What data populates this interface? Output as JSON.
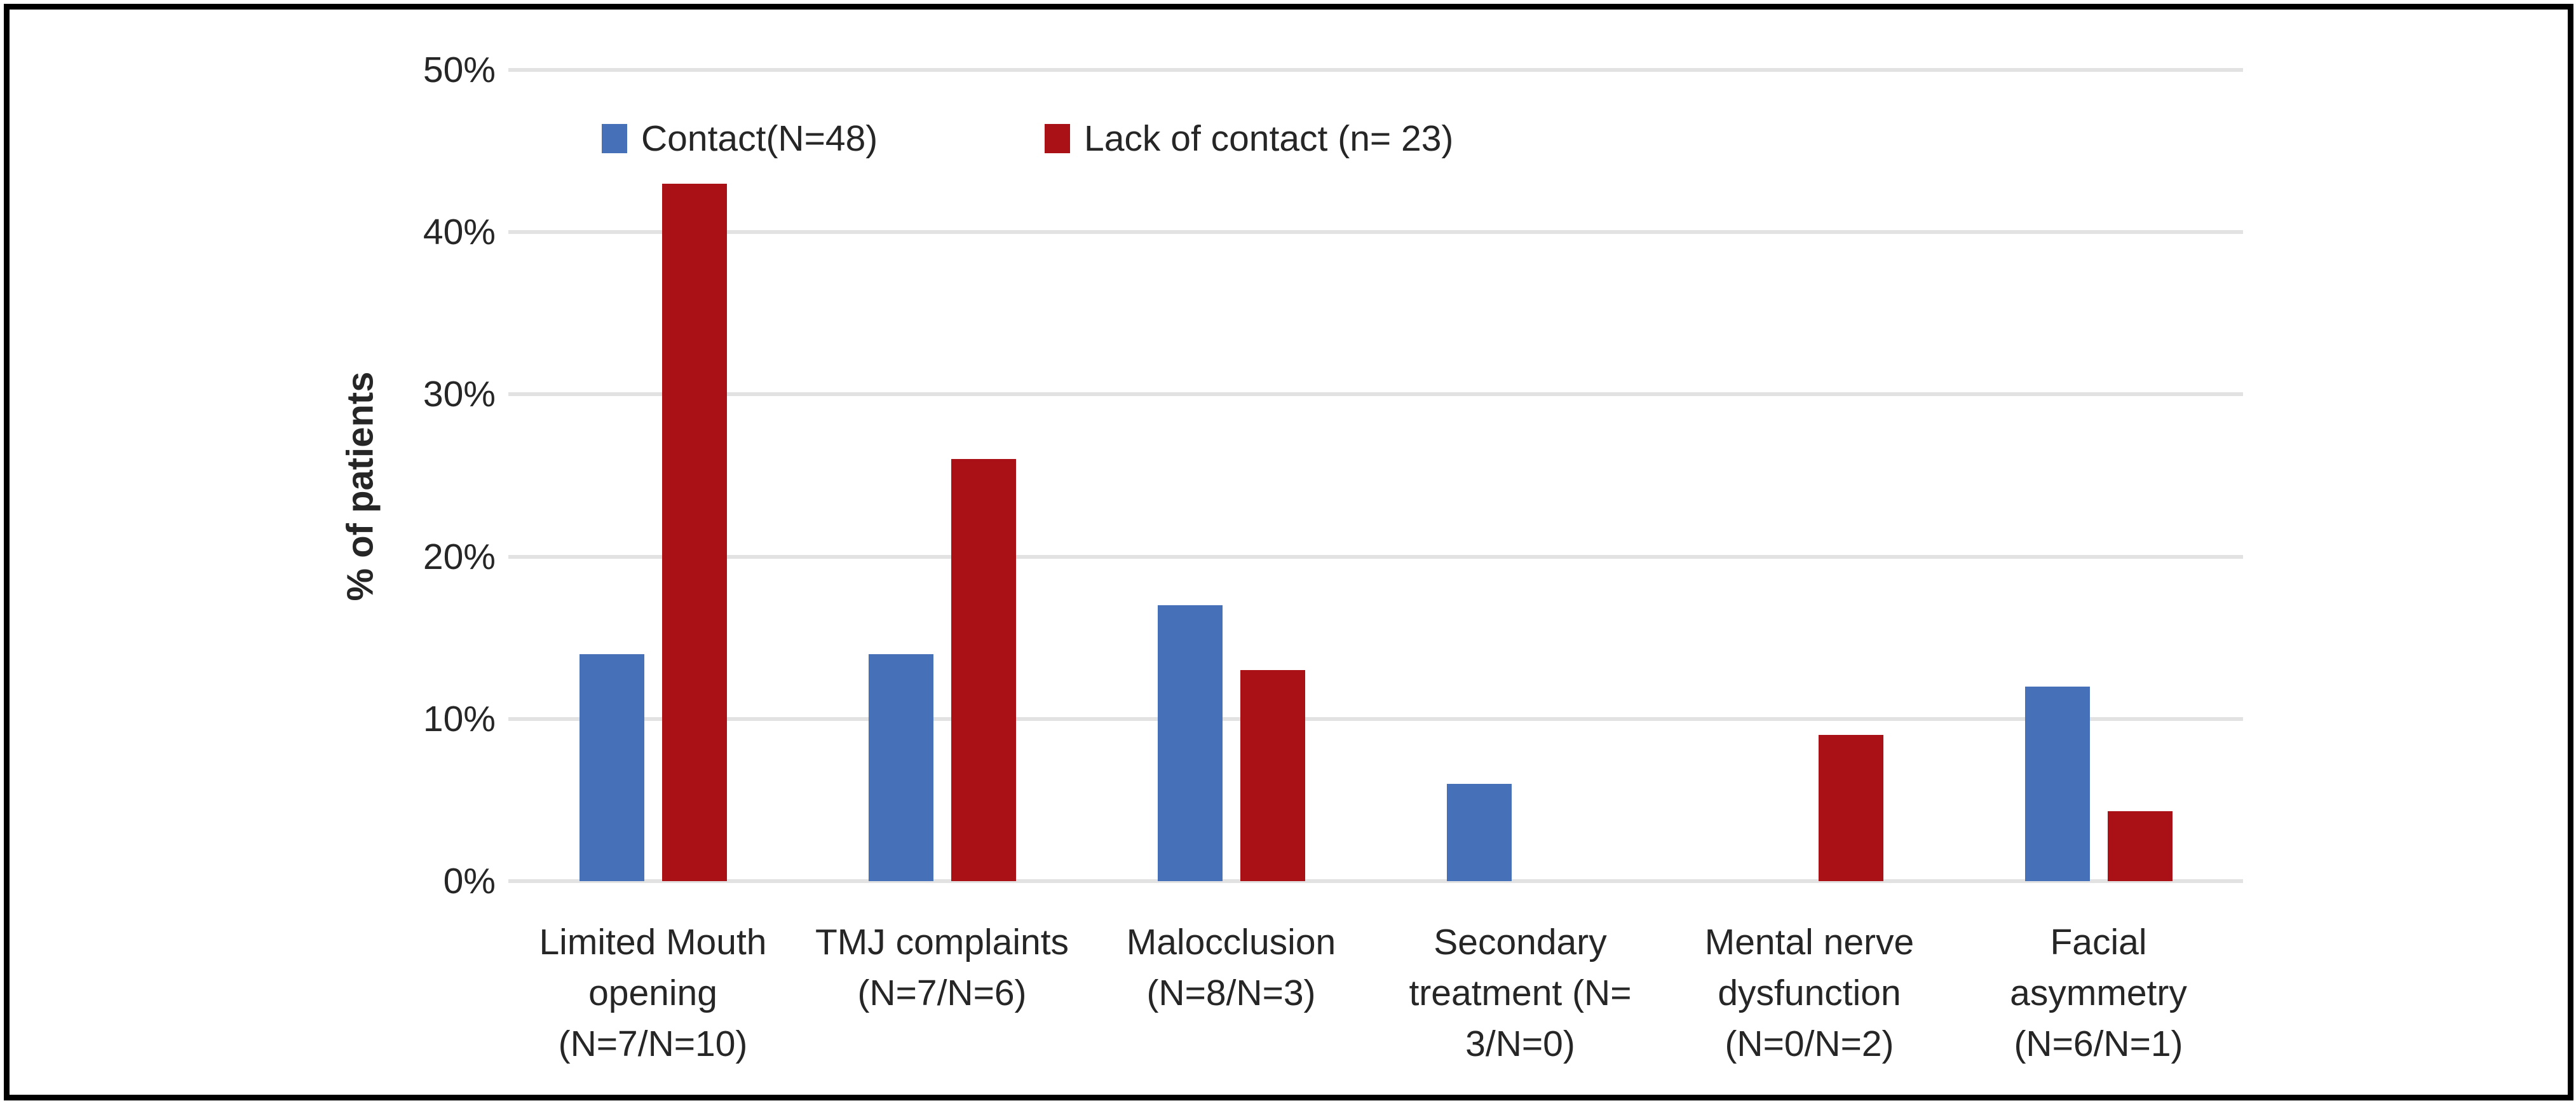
{
  "chart_data": {
    "type": "bar",
    "title": "",
    "xlabel": "",
    "ylabel": "% of patients",
    "ylim": [
      0,
      50
    ],
    "yticks": [
      0,
      10,
      20,
      30,
      40,
      50
    ],
    "ytick_labels": [
      "0%",
      "10%",
      "20%",
      "30%",
      "40%",
      "50%"
    ],
    "grid": true,
    "legend_position": "top-left-inside",
    "categories": [
      {
        "label": "Limited Mouth opening (N=7/N=10)",
        "lines": [
          "Limited Mouth",
          "opening",
          "(N=7/N=10)"
        ]
      },
      {
        "label": "TMJ complaints (N=7/N=6)",
        "lines": [
          "TMJ complaints",
          "(N=7/N=6)"
        ]
      },
      {
        "label": "Malocclusion (N=8/N=3)",
        "lines": [
          "Malocclusion",
          "(N=8/N=3)"
        ]
      },
      {
        "label": "Secondary treatment (N= 3/N=0)",
        "lines": [
          "Secondary",
          "treatment (N=",
          "3/N=0)"
        ]
      },
      {
        "label": "Mental nerve dysfunction (N=0/N=2)",
        "lines": [
          "Mental nerve",
          "dysfunction",
          "(N=0/N=2)"
        ]
      },
      {
        "label": "Facial asymmetry (N=6/N=1)",
        "lines": [
          "Facial",
          "asymmetry",
          "(N=6/N=1)"
        ]
      }
    ],
    "series": [
      {
        "name": "Contact(N=48)",
        "color": "#4670B8",
        "values": [
          14,
          14,
          17,
          6,
          0,
          12
        ]
      },
      {
        "name": "Lack of contact (n= 23)",
        "color": "#A91117",
        "values": [
          43,
          26,
          13,
          0,
          9,
          4.3
        ]
      }
    ]
  },
  "colors": {
    "grid": "#E2E2E2",
    "text": "#262626",
    "border": "#000000",
    "background": "#FFFFFF"
  }
}
